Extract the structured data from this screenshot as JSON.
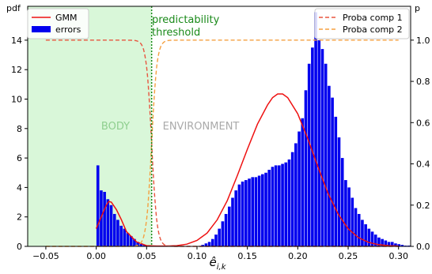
{
  "chart_data": {
    "type": "bar",
    "xlabel": "ê_{i,k}",
    "y_left_label": "pdf",
    "y_right_label": "p",
    "xlim": [
      -0.068,
      0.312
    ],
    "ylim_left": [
      0,
      16.3
    ],
    "ylim_right": [
      0,
      1.164
    ],
    "x_ticks": [
      -0.05,
      0.0,
      0.05,
      0.1,
      0.15,
      0.2,
      0.25,
      0.3
    ],
    "x_tick_labels": [
      "−0.05",
      "0.00",
      "0.05",
      "0.10",
      "0.15",
      "0.20",
      "0.25",
      "0.30"
    ],
    "y_left_ticks": [
      0,
      2,
      4,
      6,
      8,
      10,
      12,
      14
    ],
    "y_right_ticks": [
      0.0,
      0.2,
      0.4,
      0.6,
      0.8,
      1.0
    ],
    "y_right_tick_labels": [
      "0.0",
      "0.2",
      "0.4",
      "0.6",
      "0.8",
      "1.0"
    ],
    "threshold": 0.055,
    "region_labels": {
      "body": "BODY",
      "environment": "ENVIRONMENT"
    },
    "threshold_label_line1": "predictability",
    "threshold_label_line2": "threshold",
    "legend_left": {
      "gmm": "GMM",
      "errors": "errors"
    },
    "legend_right": {
      "comp1": "Proba comp 1",
      "comp2": "Proba comp 2"
    },
    "colors": {
      "bars": "#0000ee",
      "gmm": "#ee1111",
      "comp1": "#e8553f",
      "comp2": "#f5a040",
      "body_shade": "#d9f7d9",
      "threshold": "#1a8a1a",
      "body_text": "#8fcf8f",
      "env_text": "#aaaaaa"
    },
    "histogram": {
      "bin_width": 0.0033,
      "series": [
        {
          "x": 0.0,
          "values": [
            5.5,
            3.8,
            3.7,
            3.2,
            2.8,
            2.2,
            1.8,
            1.4,
            1.2,
            0.9,
            0.7,
            0.5,
            0.3,
            0.2,
            0.1,
            0.05
          ]
        },
        {
          "x": 0.104,
          "values": [
            0.1,
            0.2,
            0.3,
            0.5,
            0.8,
            1.2,
            1.7,
            2.2,
            2.7,
            3.3,
            3.8,
            4.2,
            4.4,
            4.5,
            4.6,
            4.7,
            4.7,
            4.8,
            4.9,
            5.0,
            5.2,
            5.4,
            5.5,
            5.5,
            5.6,
            5.7,
            5.9,
            6.4,
            7.0,
            7.8,
            8.7,
            10.6,
            12.4,
            13.5,
            15.9,
            14.0,
            13.4,
            12.4,
            10.9,
            10.1,
            8.8,
            7.4,
            6.0,
            4.5,
            4.0,
            3.3,
            2.6,
            2.2,
            1.8,
            1.5,
            1.2,
            1.0,
            0.8,
            0.6,
            0.5,
            0.4,
            0.3,
            0.3,
            0.2,
            0.15,
            0.1,
            0.05,
            0.05
          ]
        }
      ]
    },
    "gmm": {
      "x": [
        0.0,
        0.005,
        0.01,
        0.0125,
        0.015,
        0.02,
        0.025,
        0.03,
        0.04,
        0.05,
        0.06,
        0.07,
        0.08,
        0.09,
        0.1,
        0.11,
        0.12,
        0.13,
        0.14,
        0.15,
        0.16,
        0.17,
        0.175,
        0.18,
        0.185,
        0.19,
        0.2,
        0.21,
        0.22,
        0.23,
        0.24,
        0.25,
        0.26,
        0.27,
        0.28,
        0.29,
        0.3
      ],
      "y": [
        1.2,
        2.0,
        2.8,
        3.05,
        3.0,
        2.5,
        1.8,
        1.0,
        0.3,
        0.05,
        0.02,
        0.02,
        0.05,
        0.15,
        0.4,
        0.9,
        1.8,
        3.1,
        4.8,
        6.6,
        8.3,
        9.6,
        10.1,
        10.35,
        10.35,
        10.1,
        9.0,
        7.3,
        5.4,
        3.6,
        2.2,
        1.2,
        0.6,
        0.28,
        0.12,
        0.05,
        0.02
      ]
    },
    "proba": {
      "center": 0.055,
      "steepness": 380,
      "xmin": -0.05,
      "xmax": 0.3
    }
  }
}
